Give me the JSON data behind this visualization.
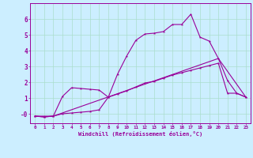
{
  "xlabel": "Windchill (Refroidissement éolien,°C)",
  "bg_color": "#cceeff",
  "line_color": "#990099",
  "grid_color": "#aaddcc",
  "xlim": [
    -0.5,
    23.5
  ],
  "ylim": [
    -0.6,
    7.0
  ],
  "yticks": [
    0,
    1,
    2,
    3,
    4,
    5,
    6
  ],
  "ytick_labels": [
    "-0",
    "1",
    "2",
    "3",
    "4",
    "5",
    "6"
  ],
  "xticks": [
    0,
    1,
    2,
    3,
    4,
    5,
    6,
    7,
    8,
    9,
    10,
    11,
    12,
    13,
    14,
    15,
    16,
    17,
    18,
    19,
    20,
    21,
    22,
    23
  ],
  "line1_x": [
    0,
    1,
    2,
    3,
    4,
    5,
    6,
    7,
    8,
    9,
    10,
    11,
    12,
    13,
    14,
    15,
    16,
    17,
    18,
    19,
    20,
    21,
    22,
    23
  ],
  "line1_y": [
    -0.15,
    -0.2,
    -0.15,
    1.1,
    1.65,
    1.6,
    1.55,
    1.5,
    1.05,
    2.5,
    3.65,
    4.65,
    5.05,
    5.1,
    5.2,
    5.65,
    5.65,
    6.3,
    4.85,
    4.6,
    3.5,
    2.1,
    1.3,
    1.05
  ],
  "line2_x": [
    0,
    1,
    2,
    3,
    4,
    5,
    6,
    7,
    8,
    9,
    10,
    11,
    12,
    13,
    14,
    15,
    16,
    17,
    18,
    19,
    20,
    21,
    22,
    23
  ],
  "line2_y": [
    -0.15,
    -0.2,
    -0.15,
    0.0,
    0.05,
    0.1,
    0.15,
    0.25,
    1.05,
    1.25,
    1.45,
    1.7,
    1.95,
    2.05,
    2.25,
    2.45,
    2.6,
    2.75,
    2.9,
    3.05,
    3.2,
    1.3,
    1.3,
    1.05
  ],
  "line3_x": [
    0,
    2,
    20,
    23
  ],
  "line3_y": [
    -0.15,
    -0.15,
    3.5,
    1.05
  ]
}
